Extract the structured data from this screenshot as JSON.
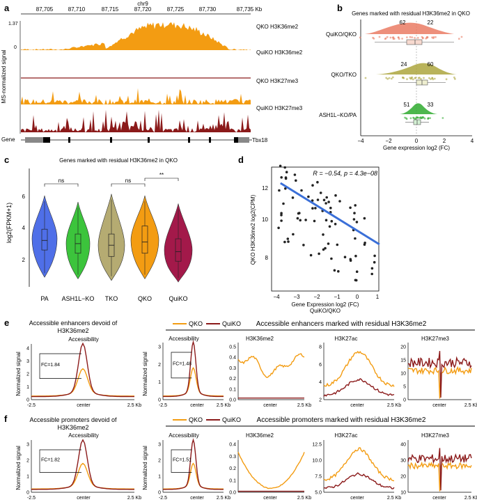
{
  "panel_labels": {
    "a": "a",
    "b": "b",
    "c": "c",
    "d": "d",
    "e": "e",
    "f": "f"
  },
  "panel_a": {
    "chrom": "chr9",
    "x_ticks": [
      "87,705",
      "87,710",
      "87,715",
      "87,720",
      "87,725",
      "87,730",
      "87,735 Kb"
    ],
    "ylabel": "MS-normalized signal",
    "ymax": "1.37",
    "ymin": "0",
    "tracks": [
      {
        "label": "QKO H3K36me2",
        "color": "#f39c12"
      },
      {
        "label": "QuiKO H3K36me2",
        "color": "#8b1a1a"
      },
      {
        "label": "QKO H3K27me3",
        "color": "#f39c12"
      },
      {
        "label": "QuiKO H3K27me3",
        "color": "#8b1a1a"
      }
    ],
    "gene_label": "Gene",
    "gene_name": "Tbx18"
  },
  "panel_b": {
    "title": "Genes marked with residual H3K36me2 in QKO",
    "xlabel": "Gene expression log2 (FC)",
    "x_ticks": [
      "−4",
      "−2",
      "0",
      "2",
      "4"
    ],
    "groups": [
      {
        "label": "QuiKO/QKO",
        "left": "62",
        "right": "22",
        "color": "#e8735a"
      },
      {
        "label": "QKO/TKO",
        "left": "24",
        "right": "60",
        "color": "#a8a032"
      },
      {
        "label": "ASH1L−KO/PA",
        "left": "51",
        "right": "33",
        "color": "#2eaa2e"
      }
    ]
  },
  "panel_c": {
    "title": "Genes marked with residual H3K36me2 in QKO",
    "ylabel": "log2(FPKM+1)",
    "y_ticks": [
      "2",
      "4",
      "6"
    ],
    "violins": [
      {
        "label": "PA",
        "color": "#4f6fe8"
      },
      {
        "label": "ASH1L−KO",
        "color": "#3cc43c"
      },
      {
        "label": "TKO",
        "color": "#b5ab72"
      },
      {
        "label": "QKO",
        "color": "#f39c12"
      },
      {
        "label": "QuiKO",
        "color": "#a3194a"
      }
    ],
    "sig1": "ns",
    "sig2": "ns",
    "sig3": "**"
  },
  "panel_d": {
    "stat": "R = −0.54, p = 4.3e−08",
    "ylabel": "QKO H3K36me2 log2(CPM)",
    "xlabel": "Gene Expression log2 (FC)",
    "xlabel2": "QuiKO/QKO",
    "x_ticks": [
      "−4",
      "−3",
      "−2",
      "−1",
      "0",
      "1"
    ],
    "y_ticks": [
      "8",
      "10",
      "12"
    ]
  },
  "row_e": {
    "left_title_1": "Accessible enhancers devoid of",
    "left_title_2": "H3K36me2",
    "right_title": "Accessible enhancers marked with residual H3K36me2",
    "legend_qko": "QKO",
    "legend_quiko": "QuiKO",
    "ylabel": "Normalized signal",
    "fc_left": "FC=1.84",
    "fc_right": "FC=1.48",
    "sub_access": "Accessibility",
    "sub_k36": "H3K36me2",
    "sub_k27ac": "H3K27ac",
    "sub_k27me3": "H3K27me3",
    "x_left": "-2.5",
    "x_center": "center",
    "x_right": "2.5 Kb",
    "yt_left": [
      "0",
      "1",
      "2",
      "3",
      "4"
    ],
    "yt_access": [
      "0",
      "1",
      "2",
      "3"
    ],
    "yt_k36": [
      "0.0",
      "0.1",
      "0.2",
      "0.3",
      "0.4",
      "0.5"
    ],
    "yt_k27ac": [
      "2",
      "4",
      "6",
      "8"
    ],
    "yt_k27me3": [
      "0",
      "5",
      "10",
      "15",
      "20"
    ]
  },
  "row_f": {
    "left_title_1": "Accessible promoters devoid of",
    "left_title_2": "H3K36me2",
    "right_title": "Accessible promoters marked with residual H3K36me2",
    "legend_qko": "QKO",
    "legend_quiko": "QuiKO",
    "ylabel": "Normalized signal",
    "fc_left": "FC=1.82",
    "fc_right": "FC=1.51",
    "sub_access": "Accessibility",
    "sub_k36": "H3K36me2",
    "sub_k27ac": "H3K27ac",
    "sub_k27me3": "H3K27me3",
    "x_left": "-2.5",
    "x_center": "center",
    "x_right": "2.5 Kb",
    "yt_left": [
      "0",
      "1",
      "2",
      "3"
    ],
    "yt_access": [
      "0",
      "1",
      "2",
      "3"
    ],
    "yt_k36": [
      "0.0",
      "0.1",
      "0.2",
      "0.3",
      "0.4"
    ],
    "yt_k27ac": [
      "5.0",
      "7.5",
      "10.0",
      "12.5"
    ],
    "yt_k27me3": [
      "10",
      "20",
      "30",
      "40"
    ]
  },
  "colors": {
    "qko": "#f39c12",
    "quiko": "#8b1a1a",
    "trend": "#3a6fd8"
  }
}
